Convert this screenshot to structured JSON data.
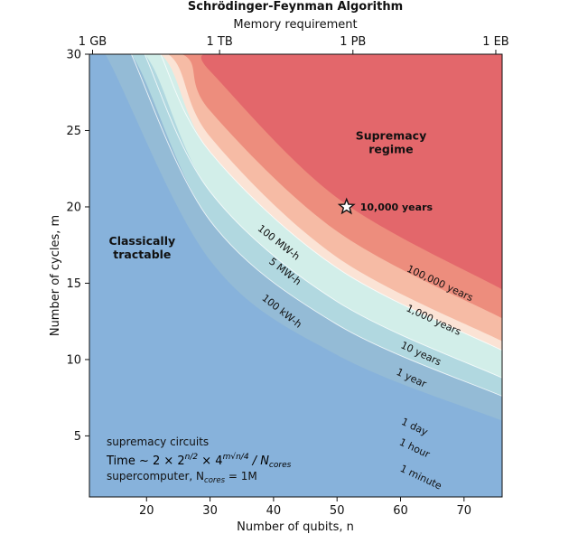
{
  "chart_data": {
    "type": "area",
    "title": "Schrödinger-Feynman Algorithm",
    "xlabel": "Number of qubits, n",
    "ylabel": "Number of cycles, m",
    "top_xlabel": "Memory requirement",
    "xlim": [
      11,
      76
    ],
    "ylim": [
      1,
      30
    ],
    "x_ticks": [
      20,
      30,
      40,
      50,
      60,
      70
    ],
    "y_ticks": [
      5,
      10,
      15,
      20,
      25,
      30
    ],
    "top_ticks": [
      {
        "n": 11.5,
        "label": "1 GB"
      },
      {
        "n": 31.5,
        "label": "1 TB"
      },
      {
        "n": 52.5,
        "label": "1 PB"
      },
      {
        "n": 75,
        "label": "1 EB"
      }
    ],
    "bands": [
      {
        "name": "1 minute",
        "color": "#94bbd6",
        "m_at_x": [
          [
            11,
            30
          ],
          [
            13.5,
            30
          ],
          [
            30,
            16.5
          ],
          [
            50,
            10.3
          ],
          [
            76,
            6.0
          ]
        ]
      },
      {
        "name": "1 hour",
        "color": "#b1d8e0",
        "m_at_x": [
          [
            11,
            30
          ],
          [
            17.6,
            30
          ],
          [
            30,
            19.1
          ],
          [
            50,
            12.3
          ],
          [
            76,
            7.6
          ]
        ]
      },
      {
        "name": "1 day",
        "color": "#d2eee9",
        "m_at_x": [
          [
            11,
            30
          ],
          [
            19.7,
            30
          ],
          [
            30,
            21.0
          ],
          [
            50,
            13.8
          ],
          [
            76,
            8.8
          ]
        ]
      },
      {
        "name": "1 year",
        "color": "#fbe3d5",
        "m_at_x": [
          [
            11,
            30
          ],
          [
            22.2,
            30
          ],
          [
            30,
            23.6
          ],
          [
            50,
            16.0
          ],
          [
            76,
            10.6
          ]
        ]
      },
      {
        "name": "10 years",
        "color": "#f6bba5",
        "m_at_x": [
          [
            11,
            30
          ],
          [
            23.4,
            30
          ],
          [
            30,
            24.6
          ],
          [
            50,
            16.7
          ],
          [
            76,
            11.2
          ]
        ]
      },
      {
        "name": "1,000 years",
        "color": "#ed8d7d",
        "m_at_x": [
          [
            11,
            30
          ],
          [
            25.6,
            30
          ],
          [
            30,
            26.3
          ],
          [
            50,
            18.4
          ],
          [
            76,
            12.7
          ]
        ]
      },
      {
        "name": "100,000 years",
        "color": "#e3676b",
        "m_at_x": [
          [
            11,
            30
          ],
          [
            28.2,
            30
          ],
          [
            30,
            28.9
          ],
          [
            50,
            20.6
          ],
          [
            76,
            14.6
          ]
        ]
      }
    ],
    "background_color": "#87b2db",
    "energy_contours": [
      {
        "label": "100 kW-h",
        "m_at_x": [
          [
            17.6,
            30
          ],
          [
            30,
            19.1
          ],
          [
            50,
            12.3
          ],
          [
            76,
            7.6
          ]
        ]
      },
      {
        "label": "5 MW-h",
        "m_at_x": [
          [
            19.7,
            30
          ],
          [
            30,
            21.0
          ],
          [
            50,
            13.8
          ],
          [
            76,
            8.8
          ]
        ]
      },
      {
        "label": "100 MW-h",
        "m_at_x": [
          [
            22.2,
            30
          ],
          [
            30,
            23.6
          ],
          [
            50,
            16.0
          ],
          [
            76,
            10.6
          ]
        ]
      }
    ],
    "band_labels": [
      {
        "text": "100,000 years",
        "x": 66,
        "y": 14.8,
        "angle": 25
      },
      {
        "text": "1,000 years",
        "x": 65,
        "y": 12.4,
        "angle": 25
      },
      {
        "text": "10 years",
        "x": 63,
        "y": 10.2,
        "angle": 25
      },
      {
        "text": "1 year",
        "x": 61.5,
        "y": 8.6,
        "angle": 25
      },
      {
        "text": "1 day",
        "x": 62,
        "y": 5.4,
        "angle": 25
      },
      {
        "text": "1 hour",
        "x": 62,
        "y": 4.0,
        "angle": 25
      },
      {
        "text": "1 minute",
        "x": 63,
        "y": 2.1,
        "angle": 25
      },
      {
        "text": "100 MW-h",
        "x": 40.5,
        "y": 17.5,
        "angle": 38
      },
      {
        "text": "5 MW-h",
        "x": 41.5,
        "y": 15.6,
        "angle": 38
      },
      {
        "text": "100 kW-h",
        "x": 41,
        "y": 13.0,
        "angle": 38
      }
    ],
    "marker": {
      "x": 51.5,
      "y": 20.0,
      "symbol": "star",
      "label": "10,000 years"
    },
    "regions": [
      {
        "lines": [
          "Supremacy",
          "regime"
        ],
        "x": 58.5,
        "y": 24.4
      },
      {
        "lines": [
          "Classically",
          "tractable"
        ],
        "x": 19.3,
        "y": 17.5
      }
    ],
    "formula": {
      "line1": "supremacy circuits",
      "time_prefix": "Time ~ 2 × 2",
      "exp1": "n/2",
      "times4": " × 4",
      "exp2": "m√n/4",
      "slash": " / N",
      "sub_cores": "cores",
      "line3_prefix": "supercomputer, N",
      "line3_sub": "cores",
      "line3_suffix": " = 1M"
    }
  }
}
